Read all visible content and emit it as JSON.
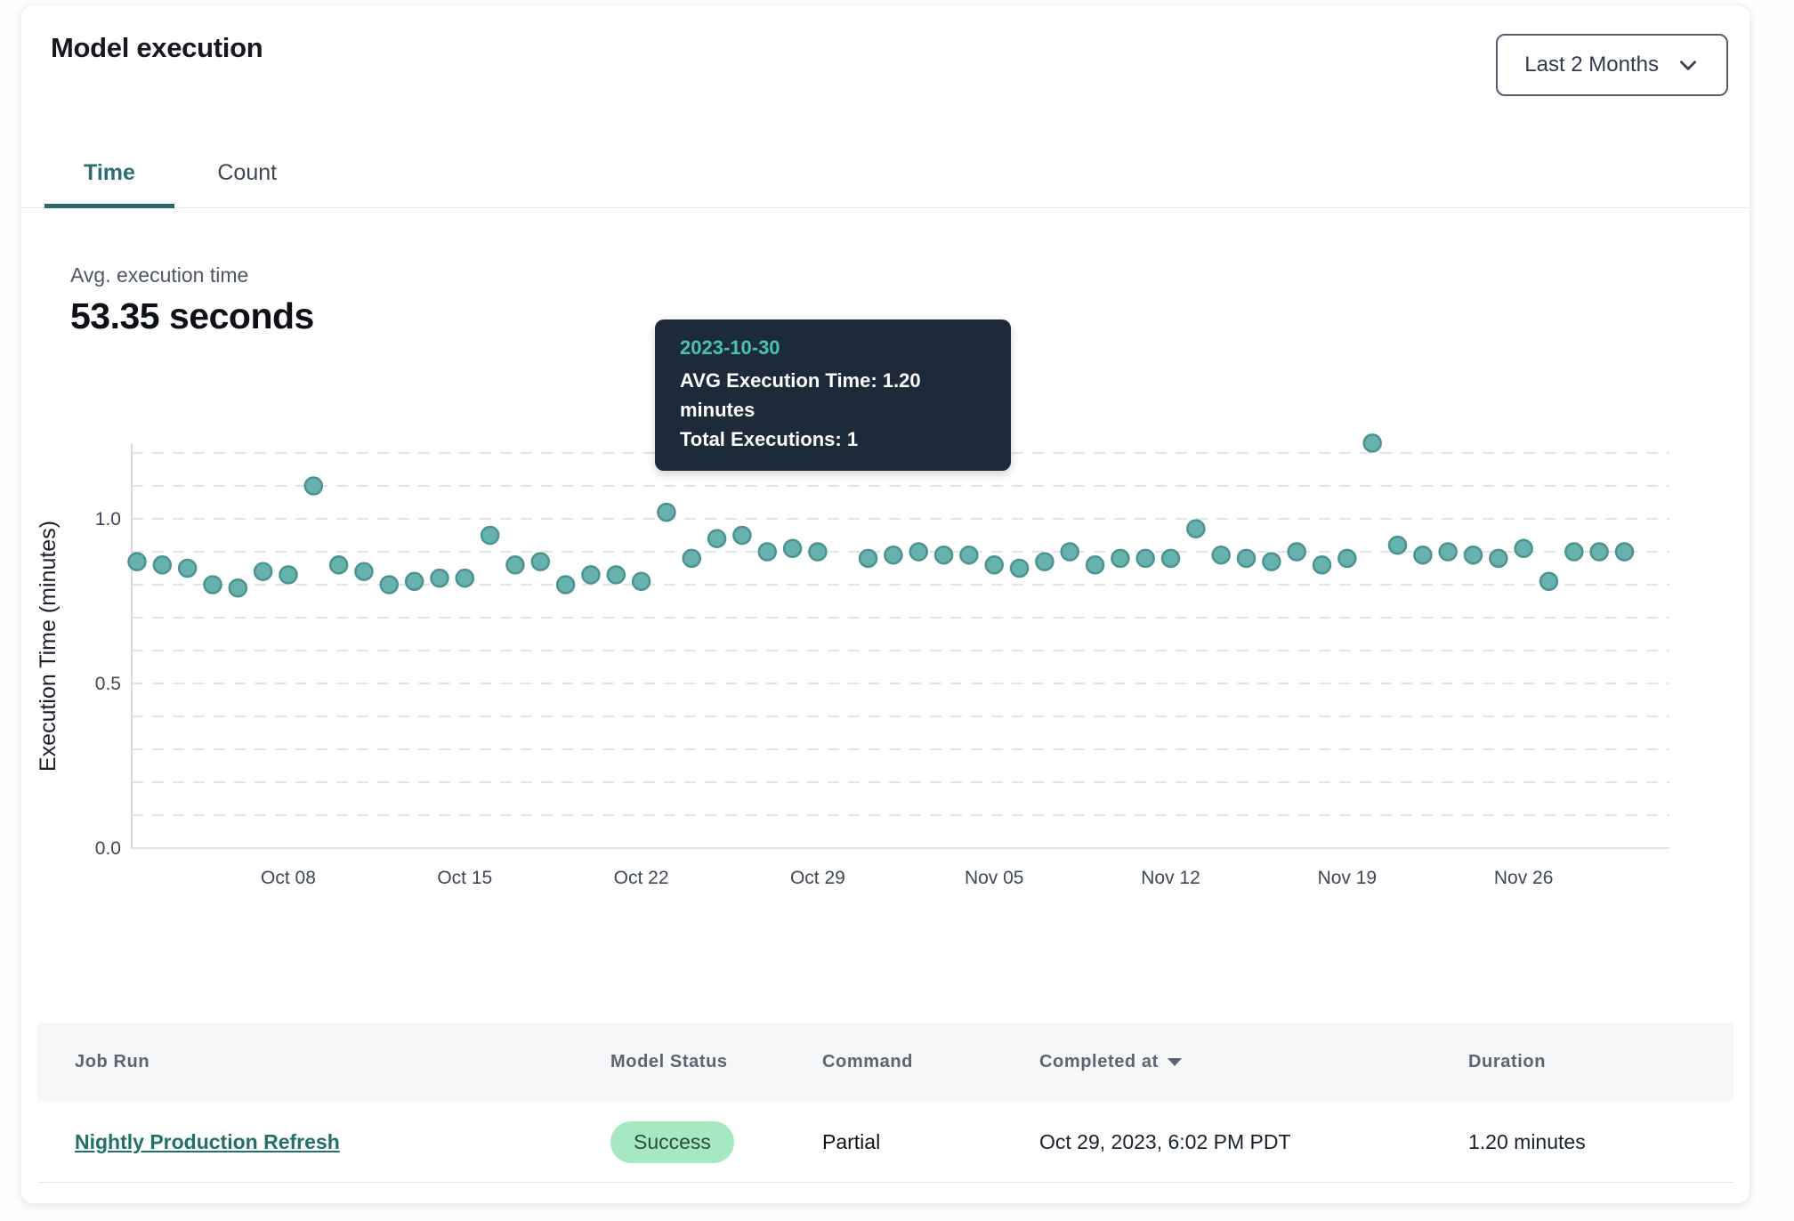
{
  "header": {
    "title": "Model execution",
    "range_selector": {
      "label": "Last 2 Months"
    }
  },
  "tabs": {
    "active": "Time",
    "items": [
      {
        "label": "Time"
      },
      {
        "label": "Count"
      }
    ]
  },
  "stats": {
    "label": "Avg. execution time",
    "value": "53.35 seconds"
  },
  "tooltip": {
    "date": "2023-10-30",
    "avg_line": "AVG Execution Time: 1.20 minutes",
    "total_line": "Total Executions: 1"
  },
  "colors": {
    "accent_teal": "#2a666b",
    "point_fill": "#67b2af",
    "point_stroke": "#4a938f",
    "highlight_fill": "#4d8b93",
    "highlight_stroke": "#3e727c",
    "tooltip_bg": "#1d2a39",
    "tooltip_date": "#46c3b2",
    "badge_bg": "#a6e9c1",
    "grid": "#e3e4e7",
    "axis_line": "#d7d9dd"
  },
  "chart_data": {
    "type": "scatter",
    "title": "",
    "xlabel": "",
    "ylabel": "Execution Time (minutes)",
    "ylim": [
      0,
      1.25
    ],
    "grid": "dashed horizontal every 0.1",
    "legend": "none",
    "ytick_values": [
      0,
      0.5,
      1.0
    ],
    "ytick_labels": [
      "0.0",
      "0.5",
      "1.0"
    ],
    "x_domain": [
      "2023-10-02",
      "2023-12-01"
    ],
    "x_tick_dates": [
      "2023-10-08",
      "2023-10-15",
      "2023-10-22",
      "2023-10-29",
      "2023-11-05",
      "2023-11-12",
      "2023-11-19",
      "2023-11-26"
    ],
    "x_tick_labels": [
      "Oct 08",
      "Oct 15",
      "Oct 22",
      "Oct 29",
      "Nov 05",
      "Nov 12",
      "Nov 19",
      "Nov 26"
    ],
    "highlighted_point": {
      "date": "2023-10-30",
      "value": 1.2
    },
    "points": [
      {
        "date": "2023-10-02",
        "value": 0.87
      },
      {
        "date": "2023-10-03",
        "value": 0.86
      },
      {
        "date": "2023-10-04",
        "value": 0.85
      },
      {
        "date": "2023-10-05",
        "value": 0.8
      },
      {
        "date": "2023-10-06",
        "value": 0.79
      },
      {
        "date": "2023-10-07",
        "value": 0.84
      },
      {
        "date": "2023-10-08",
        "value": 0.83
      },
      {
        "date": "2023-10-09",
        "value": 1.1
      },
      {
        "date": "2023-10-10",
        "value": 0.86
      },
      {
        "date": "2023-10-11",
        "value": 0.84
      },
      {
        "date": "2023-10-12",
        "value": 0.8
      },
      {
        "date": "2023-10-13",
        "value": 0.81
      },
      {
        "date": "2023-10-14",
        "value": 0.82
      },
      {
        "date": "2023-10-15",
        "value": 0.82
      },
      {
        "date": "2023-10-16",
        "value": 0.95
      },
      {
        "date": "2023-10-17",
        "value": 0.86
      },
      {
        "date": "2023-10-18",
        "value": 0.87
      },
      {
        "date": "2023-10-19",
        "value": 0.8
      },
      {
        "date": "2023-10-20",
        "value": 0.83
      },
      {
        "date": "2023-10-21",
        "value": 0.83
      },
      {
        "date": "2023-10-22",
        "value": 0.81
      },
      {
        "date": "2023-10-23",
        "value": 1.02
      },
      {
        "date": "2023-10-24",
        "value": 0.88
      },
      {
        "date": "2023-10-25",
        "value": 0.94
      },
      {
        "date": "2023-10-26",
        "value": 0.95
      },
      {
        "date": "2023-10-27",
        "value": 0.9
      },
      {
        "date": "2023-10-28",
        "value": 0.91
      },
      {
        "date": "2023-10-29",
        "value": 0.9
      },
      {
        "date": "2023-10-30",
        "value": 1.2
      },
      {
        "date": "2023-10-31",
        "value": 0.88
      },
      {
        "date": "2023-11-01",
        "value": 0.89
      },
      {
        "date": "2023-11-02",
        "value": 0.9
      },
      {
        "date": "2023-11-03",
        "value": 0.89
      },
      {
        "date": "2023-11-04",
        "value": 0.89
      },
      {
        "date": "2023-11-05",
        "value": 0.86
      },
      {
        "date": "2023-11-06",
        "value": 0.85
      },
      {
        "date": "2023-11-07",
        "value": 0.87
      },
      {
        "date": "2023-11-08",
        "value": 0.9
      },
      {
        "date": "2023-11-09",
        "value": 0.86
      },
      {
        "date": "2023-11-10",
        "value": 0.88
      },
      {
        "date": "2023-11-11",
        "value": 0.88
      },
      {
        "date": "2023-11-12",
        "value": 0.88
      },
      {
        "date": "2023-11-13",
        "value": 0.97
      },
      {
        "date": "2023-11-14",
        "value": 0.89
      },
      {
        "date": "2023-11-15",
        "value": 0.88
      },
      {
        "date": "2023-11-16",
        "value": 0.87
      },
      {
        "date": "2023-11-17",
        "value": 0.9
      },
      {
        "date": "2023-11-18",
        "value": 0.86
      },
      {
        "date": "2023-11-19",
        "value": 0.88
      },
      {
        "date": "2023-11-20",
        "value": 1.23
      },
      {
        "date": "2023-11-21",
        "value": 0.92
      },
      {
        "date": "2023-11-22",
        "value": 0.89
      },
      {
        "date": "2023-11-23",
        "value": 0.9
      },
      {
        "date": "2023-11-24",
        "value": 0.89
      },
      {
        "date": "2023-11-25",
        "value": 0.88
      },
      {
        "date": "2023-11-26",
        "value": 0.91
      },
      {
        "date": "2023-11-27",
        "value": 0.81
      },
      {
        "date": "2023-11-28",
        "value": 0.9
      },
      {
        "date": "2023-11-29",
        "value": 0.9
      },
      {
        "date": "2023-11-30",
        "value": 0.9
      }
    ]
  },
  "table": {
    "columns": [
      "Job Run",
      "Model Status",
      "Command",
      "Completed at",
      "Duration"
    ],
    "rows": [
      {
        "job_run": "Nightly Production Refresh",
        "model_status": "Success",
        "command": "Partial",
        "completed_at": "Oct 29, 2023, 6:02 PM PDT",
        "duration": "1.20 minutes"
      }
    ]
  }
}
